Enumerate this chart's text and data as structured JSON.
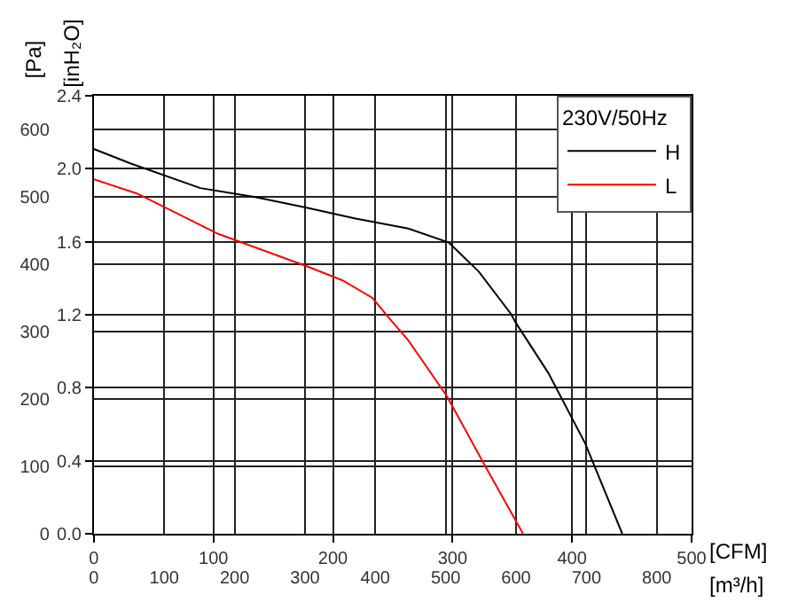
{
  "chart_data": {
    "type": "line",
    "xlabel": "[CFM]",
    "x2label": "[m³/h]",
    "ylabel": "[Pa]",
    "y2label": "[inH₂O]",
    "legend_title": "230V/50Hz",
    "xlim": [
      0,
      500
    ],
    "xticks": [
      0,
      100,
      200,
      300,
      400,
      500
    ],
    "x2lim": [
      0,
      849.5
    ],
    "x2ticks": [
      0,
      100,
      200,
      300,
      400,
      500,
      600,
      700,
      800
    ],
    "ylim": [
      0,
      650
    ],
    "yticks": [
      0,
      100,
      200,
      300,
      400,
      500,
      600
    ],
    "y2lim": [
      0,
      2.4
    ],
    "y2ticks": [
      {
        "value": 0,
        "label": "0.0"
      },
      {
        "value": 0.4,
        "label": "0.4"
      },
      {
        "value": 0.8,
        "label": "0.8"
      },
      {
        "value": 1.2,
        "label": "1.2"
      },
      {
        "value": 1.6,
        "label": "1.6"
      },
      {
        "value": 2.0,
        "label": "2.0"
      },
      {
        "value": 2.4,
        "label": "2.4"
      }
    ],
    "grid": true,
    "legend": "top right",
    "marker": "none",
    "line_style": "solid",
    "series": [
      {
        "name": "H",
        "color": "#000000",
        "x": [
          0,
          30,
          89,
          134,
          178,
          218,
          263,
          297,
          322,
          349,
          353,
          380,
          411,
          442
        ],
        "values": [
          571,
          550,
          513,
          500,
          484,
          468,
          453,
          432,
          389,
          326,
          313,
          239,
          134,
          0
        ]
      },
      {
        "name": "L",
        "color": "#ff0000",
        "x": [
          0,
          36,
          104,
          178,
          208,
          233,
          248,
          263,
          295,
          325,
          359
        ],
        "values": [
          526,
          505,
          445,
          397,
          376,
          350,
          318,
          287,
          205,
          108,
          0
        ]
      }
    ]
  }
}
